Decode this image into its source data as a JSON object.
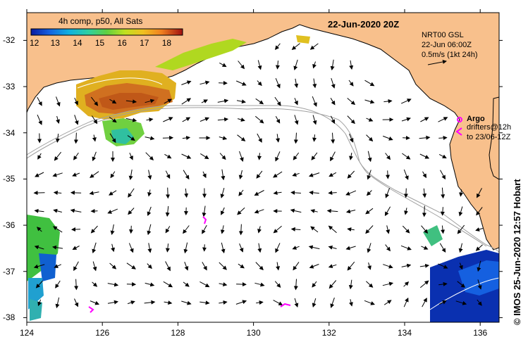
{
  "title": "22-Jun-2020 20Z",
  "colorbar": {
    "label": "4h comp, p50, All Sats",
    "ticks": [
      "12",
      "13",
      "14",
      "15",
      "16",
      "17",
      "18"
    ],
    "min": 12,
    "max": 18.8,
    "colors": [
      "#0a1aa0",
      "#1560e0",
      "#10b0e0",
      "#30d0a0",
      "#60d040",
      "#c0e020",
      "#f0c020",
      "#f08020",
      "#e04010",
      "#a01010"
    ]
  },
  "info": {
    "line1": "NRT00 GSL",
    "line2": "22-Jun 06:00Z",
    "line3": "0.5m/s (1kt 24h)"
  },
  "argo": {
    "title": "Argo",
    "line1": "drifters@12h",
    "line2": "to 23/06-12Z"
  },
  "credit": "© IMOS 25-Jun-2020 12:57 Hobart",
  "axes": {
    "x_ticks": [
      "124",
      "126",
      "128",
      "130",
      "132",
      "134",
      "136"
    ],
    "y_ticks": [
      "-32",
      "-33",
      "-34",
      "-35",
      "-36",
      "-37",
      "-38"
    ],
    "lon_range": [
      124,
      136.5
    ],
    "lat_range": [
      -31.4,
      -38.1
    ]
  },
  "colors": {
    "land": "#f8c08c",
    "sea": "#ffffff",
    "coast": "#000000",
    "shelf": "#a0a0a0",
    "argo": "#ff00ff"
  }
}
